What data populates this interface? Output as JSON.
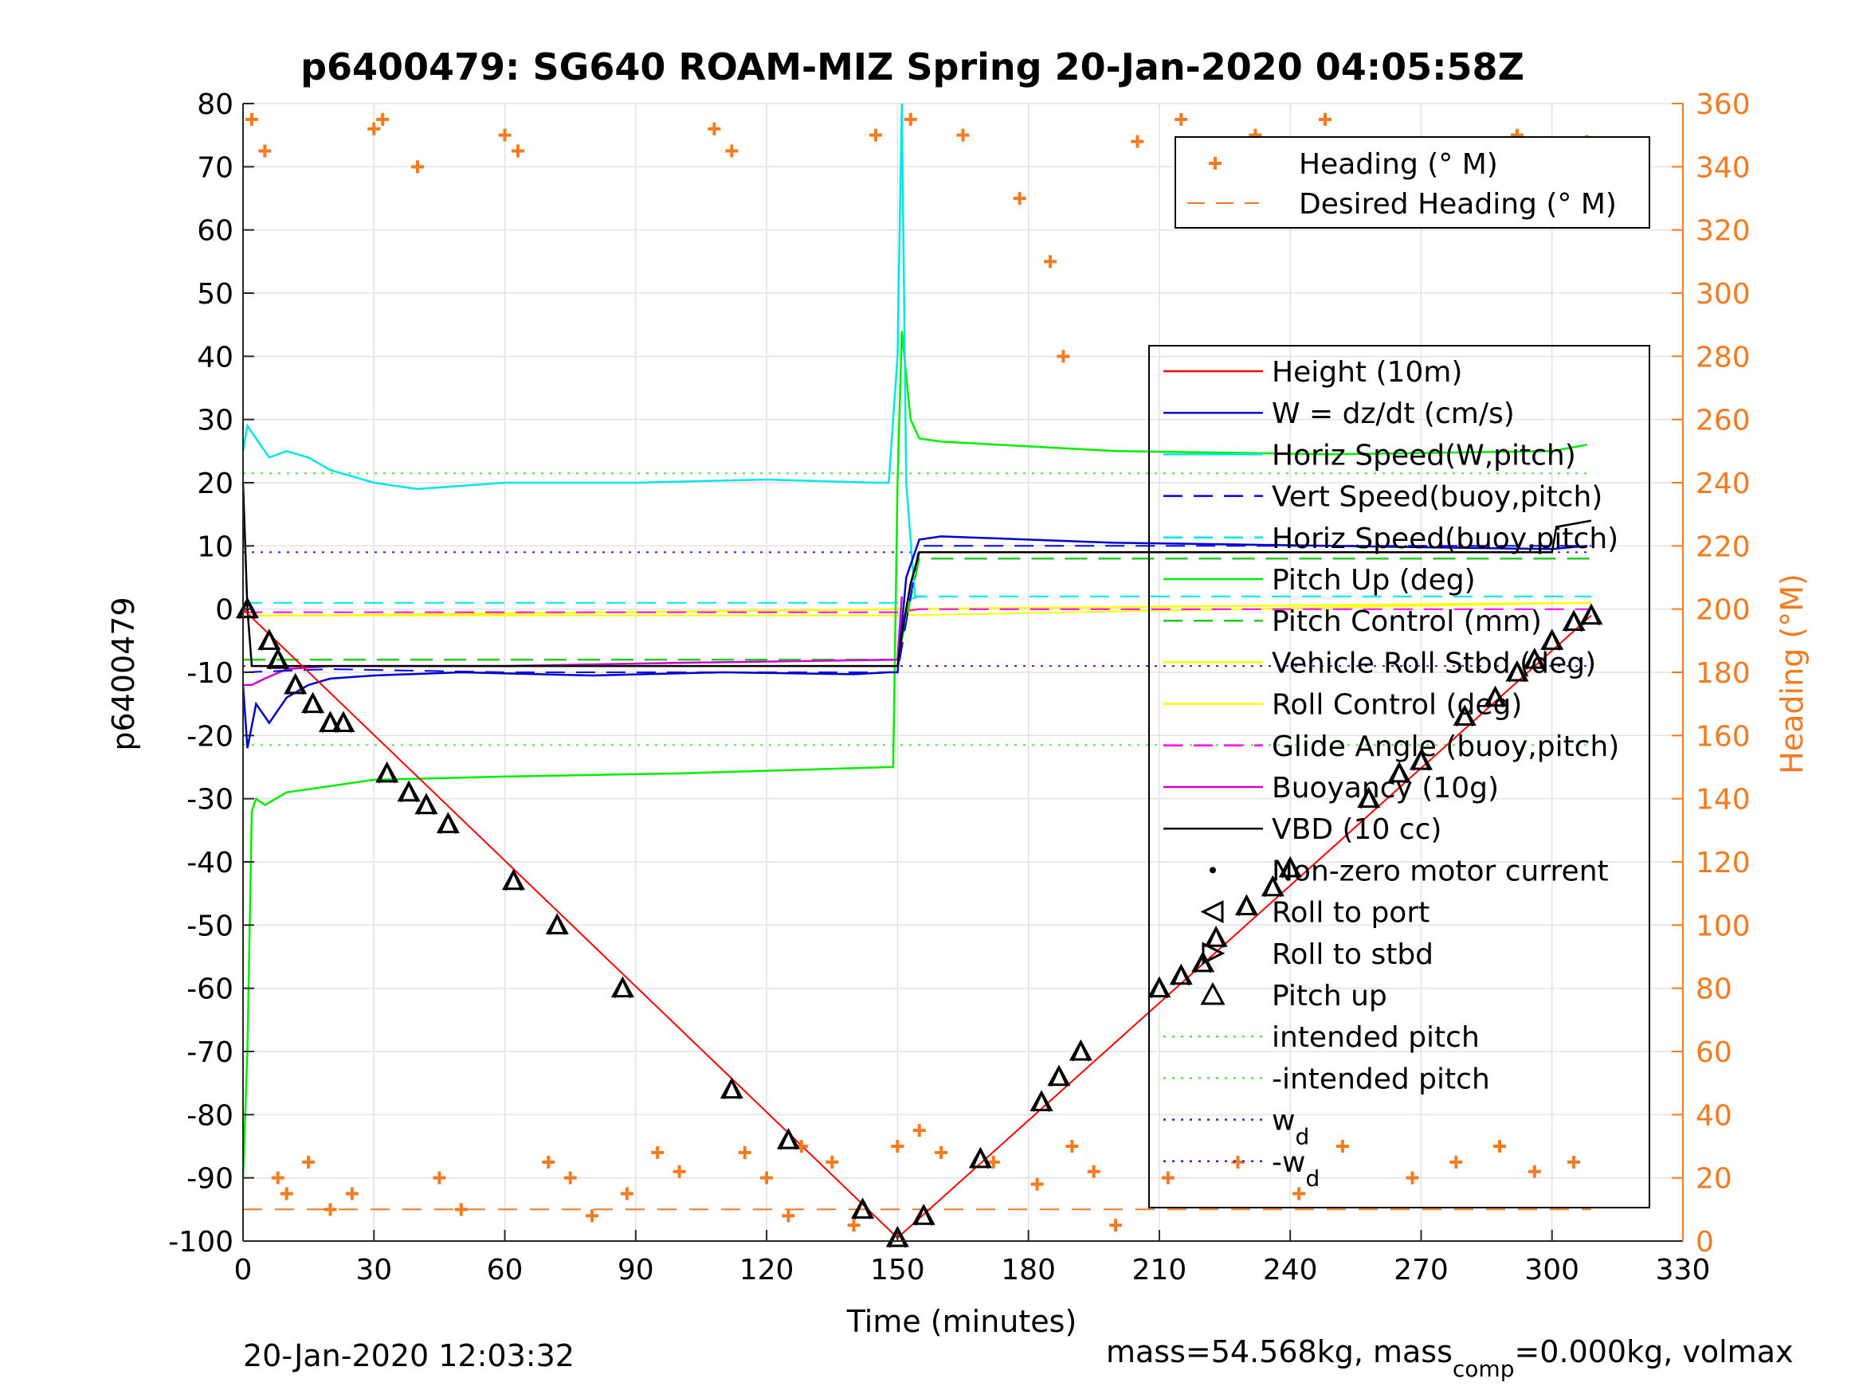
{
  "figure": {
    "title": "p6400479: SG640 ROAM-MIZ Spring 20-Jan-2020 04:05:58Z",
    "footer_left": "20-Jan-2020 12:03:32",
    "footer_right_prefix": "mass=54.568kg, mass",
    "footer_right_sub": "comp",
    "footer_right_suffix": "=0.000kg, volmax"
  },
  "colors": {
    "height": "#ff0000",
    "w": "#0000cc",
    "horiz_speed": "#00e5e5",
    "vert_speed": "#0000ff",
    "horiz_speed_buoy": "#2b2bff",
    "pitch_up": "#00ee00",
    "pitch_control": "#22cc22",
    "roll": "#ffff00",
    "glide_angle": "#ff00ff",
    "buoyancy": "#cc00cc",
    "vbd": "#000000",
    "heading": "#f47a20",
    "intended_pitch": "#44ee44",
    "w_d": "#2222ff"
  },
  "chart_data": {
    "type": "line",
    "title": "p6400479: SG640 ROAM-MIZ Spring 20-Jan-2020 04:05:58Z",
    "xlabel": "Time (minutes)",
    "ylabel": "p6400479",
    "y2label": "Heading (°M)",
    "xlim": [
      0,
      330
    ],
    "ylim": [
      -100,
      80
    ],
    "y2lim": [
      0,
      360
    ],
    "xticks": [
      "0",
      "30",
      "60",
      "90",
      "120",
      "150",
      "180",
      "210",
      "240",
      "270",
      "300",
      "330"
    ],
    "yticks": [
      "80",
      "70",
      "60",
      "50",
      "40",
      "30",
      "20",
      "10",
      "0",
      "-10",
      "-20",
      "-30",
      "-40",
      "-50",
      "-60",
      "-70",
      "-80",
      "-90",
      "-100"
    ],
    "y2ticks": [
      "360",
      "340",
      "320",
      "300",
      "280",
      "260",
      "240",
      "220",
      "200",
      "180",
      "160",
      "140",
      "120",
      "100",
      "80",
      "60",
      "40",
      "20",
      "0"
    ],
    "grid": true,
    "legend_heading": {
      "placement": "top-right",
      "entries": [
        "Heading (° M)",
        "Desired Heading (° M)"
      ]
    },
    "legend_main": {
      "placement": "right",
      "entries": [
        "Height (10m)",
        "W = dz/dt (cm/s)",
        "Horiz Speed(W,pitch)",
        "Vert Speed(buoy,pitch)",
        "Horiz Speed(buoy,pitch)",
        "Pitch Up (deg)",
        "Pitch Control (mm)",
        "Vehicle Roll Stbd (deg)",
        "Roll Control (deg)",
        "Glide Angle (buoy,pitch)",
        "Buoyancy (10g)",
        "VBD (10 cc)",
        "Non-zero motor current",
        "Roll to port",
        "Roll to stbd",
        "Pitch up",
        "intended pitch",
        "-intended pitch",
        "w",
        "-w"
      ],
      "w_subscript": "d"
    },
    "series": [
      {
        "name": "Height (10m)",
        "x": [
          0,
          150,
          309
        ],
        "y": [
          0,
          -99.5,
          -1
        ]
      },
      {
        "name": "W = dz/dt (cm/s)",
        "x": [
          0,
          1,
          3,
          6,
          10,
          15,
          20,
          30,
          50,
          80,
          110,
          140,
          148,
          150,
          152,
          155,
          160,
          200,
          250,
          300,
          308
        ],
        "y": [
          -12,
          -22,
          -15,
          -18,
          -14,
          -12,
          -11,
          -10.5,
          -10,
          -10.5,
          -10,
          -10.3,
          -10,
          -10,
          5,
          11,
          11.5,
          10.5,
          10,
          9.5,
          10
        ]
      },
      {
        "name": "Horiz Speed(W,pitch)",
        "x": [
          0,
          1,
          3,
          6,
          10,
          15,
          20,
          30,
          40,
          60,
          90,
          120,
          145,
          148,
          150,
          151,
          152,
          154,
          156
        ],
        "y": [
          25,
          29,
          27,
          24,
          25,
          24,
          22,
          20,
          19,
          20,
          20,
          20.5,
          20,
          20,
          40,
          80,
          20,
          2,
          2
        ]
      },
      {
        "name": "Vert Speed(buoy,pitch)",
        "x": [
          0,
          20,
          60,
          100,
          148,
          150,
          155,
          309
        ],
        "y": [
          -10,
          -9.5,
          -10,
          -10,
          -10,
          -10,
          10,
          10
        ]
      },
      {
        "name": "Horiz Speed(buoy,pitch)",
        "x": [
          0,
          150,
          155,
          309
        ],
        "y": [
          1,
          1,
          2,
          2
        ]
      },
      {
        "name": "Pitch Up (deg)",
        "x": [
          0,
          1,
          2,
          3,
          5,
          10,
          20,
          30,
          60,
          100,
          148,
          149,
          150,
          151,
          153,
          155,
          160,
          200,
          250,
          300,
          308
        ],
        "y": [
          -90,
          -70,
          -32,
          -30,
          -31,
          -29,
          -28,
          -27,
          -26.5,
          -26,
          -25,
          -25,
          20,
          44,
          30,
          27,
          26.5,
          25,
          24.5,
          25,
          26
        ]
      },
      {
        "name": "Pitch Control (mm)",
        "x": [
          0,
          150,
          155,
          309
        ],
        "y": [
          -8,
          -8,
          8,
          8
        ]
      },
      {
        "name": "Vehicle Roll Stbd (deg)",
        "x": [
          0,
          20,
          150,
          309
        ],
        "y": [
          -1,
          -1,
          0,
          1
        ]
      },
      {
        "name": "Roll Control (deg)",
        "x": [
          0,
          150,
          309
        ],
        "y": [
          -1,
          -1,
          1
        ]
      },
      {
        "name": "Glide Angle (buoy,pitch)",
        "x": [
          0,
          150,
          155,
          309
        ],
        "y": [
          -0.5,
          -0.5,
          0,
          0
        ]
      },
      {
        "name": "Buoyancy (10g)",
        "x": [
          0,
          2,
          5,
          10,
          20,
          60,
          100,
          150,
          151
        ],
        "y": [
          -12,
          -12,
          -11,
          -9.5,
          -9,
          -9,
          -8.5,
          -8,
          2
        ]
      },
      {
        "name": "VBD (10 cc)",
        "x": [
          0,
          1,
          2,
          148,
          150,
          151,
          153,
          155,
          300,
          301,
          309
        ],
        "y": [
          20,
          0,
          -9,
          -9,
          -9,
          -4,
          4,
          9,
          9,
          13,
          14
        ]
      },
      {
        "name": "Pitch up",
        "x": [
          1,
          6,
          8,
          12,
          16,
          20,
          23,
          33,
          38,
          42,
          47,
          62,
          72,
          87,
          112,
          125,
          142,
          150,
          156,
          169,
          183,
          187,
          192,
          210,
          215,
          220,
          223,
          230,
          236,
          240,
          258,
          265,
          270,
          280,
          287,
          292,
          296,
          300,
          305,
          309
        ],
        "y": [
          0,
          -5,
          -8,
          -12,
          -15,
          -18,
          -18,
          -26,
          -29,
          -31,
          -34,
          -43,
          -50,
          -60,
          -76,
          -84,
          -95,
          -99.5,
          -96,
          -87,
          -78,
          -74,
          -70,
          -60,
          -58,
          -56,
          -52,
          -47,
          -44,
          -41,
          -30,
          -26,
          -24,
          -17,
          -14,
          -10,
          -8,
          -5,
          -2,
          -1
        ]
      },
      {
        "name": "intended pitch",
        "x": [
          0,
          309
        ],
        "y": [
          21.5,
          21.5
        ]
      },
      {
        "name": "-intended pitch",
        "x": [
          0,
          309
        ],
        "y": [
          -21.5,
          -21.5
        ]
      },
      {
        "name": "w_d",
        "x": [
          0,
          309
        ],
        "y": [
          9,
          9
        ]
      },
      {
        "name": "-w_d",
        "x": [
          0,
          309
        ],
        "y": [
          -9,
          -9
        ]
      },
      {
        "name": "Desired Heading (° M)",
        "axis": "right",
        "x": [
          0,
          309
        ],
        "y": [
          10,
          10
        ]
      },
      {
        "name": "Heading (° M)",
        "axis": "right",
        "x": [
          2,
          5,
          8,
          10,
          15,
          20,
          25,
          30,
          32,
          40,
          45,
          50,
          60,
          63,
          70,
          75,
          80,
          88,
          95,
          100,
          108,
          112,
          115,
          120,
          125,
          128,
          135,
          140,
          145,
          150,
          153,
          155,
          160,
          165,
          172,
          178,
          182,
          185,
          188,
          190,
          195,
          200,
          205,
          212,
          215,
          220,
          228,
          232,
          235,
          242,
          248,
          252,
          258,
          262,
          268,
          272,
          278,
          282,
          288,
          292,
          296,
          300,
          305,
          308
        ],
        "y": [
          355,
          345,
          20,
          15,
          25,
          10,
          15,
          352,
          355,
          340,
          20,
          10,
          350,
          345,
          25,
          20,
          8,
          15,
          28,
          22,
          352,
          345,
          28,
          20,
          8,
          30,
          25,
          5,
          350,
          30,
          355,
          35,
          28,
          350,
          25,
          330,
          18,
          310,
          280,
          30,
          22,
          5,
          348,
          20,
          355,
          338,
          25,
          350,
          340,
          15,
          355,
          30,
          345,
          335,
          20,
          345,
          25,
          340,
          30,
          350,
          22,
          340,
          25,
          348
        ]
      }
    ]
  }
}
